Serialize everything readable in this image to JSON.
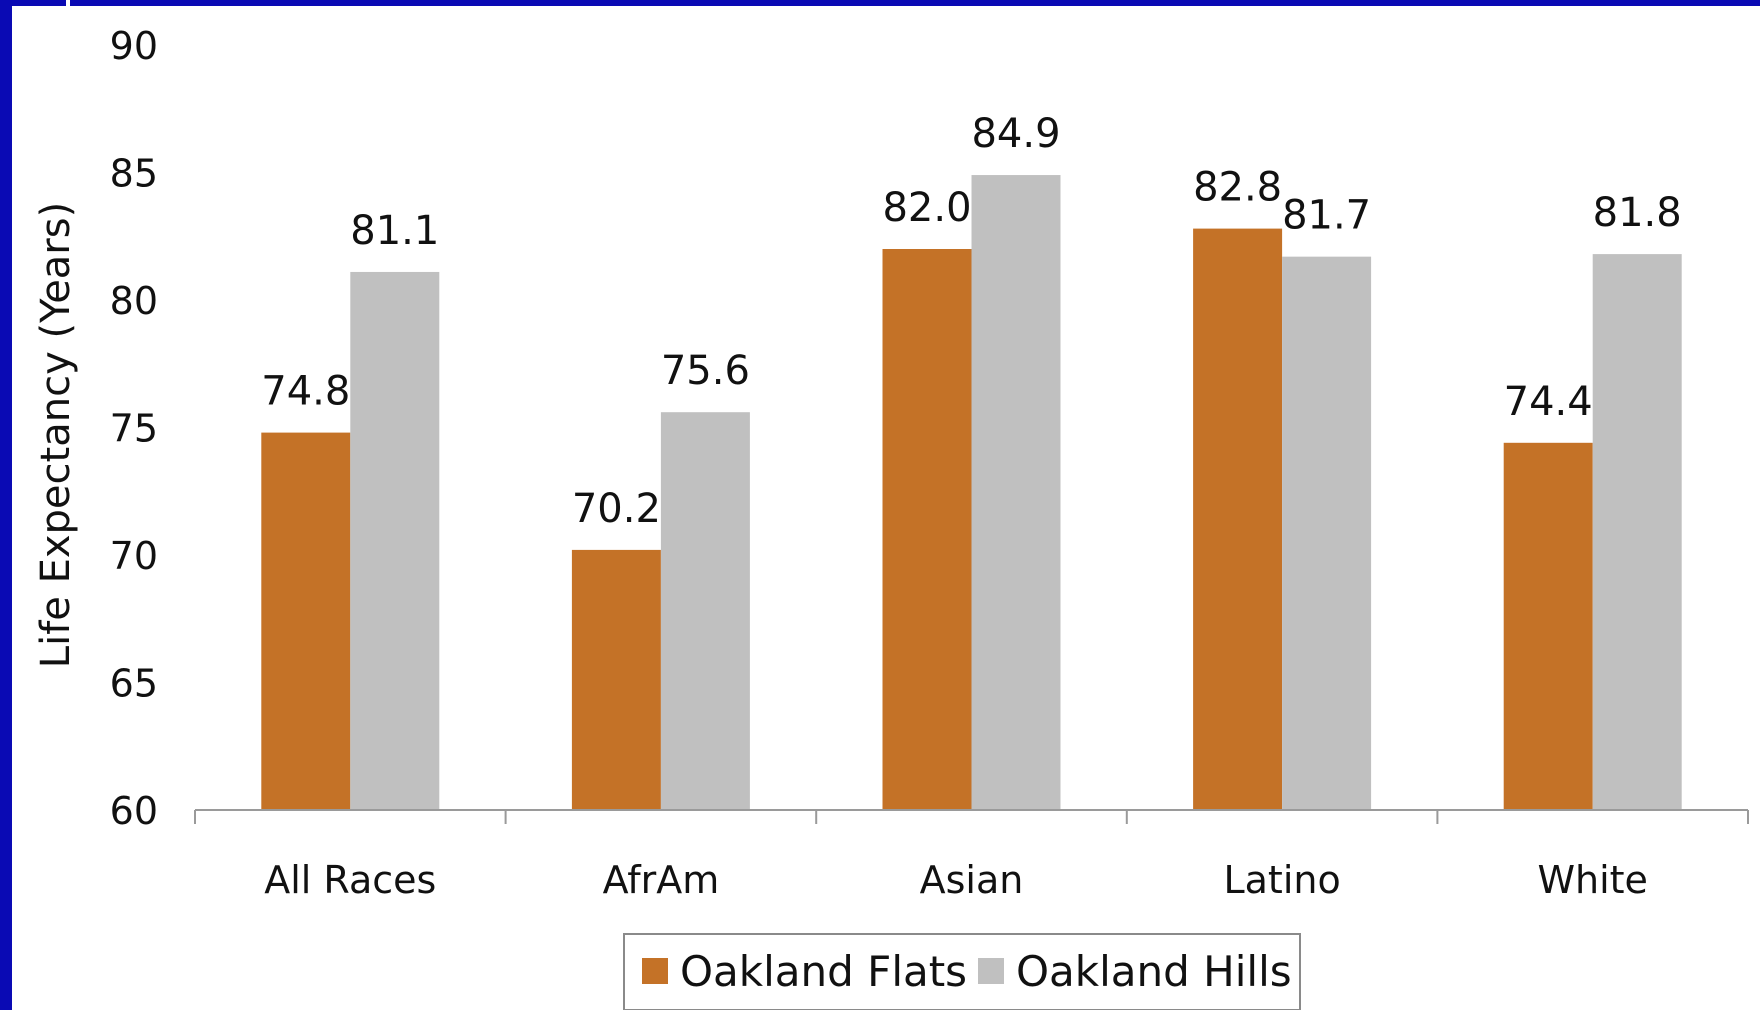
{
  "chart_data": {
    "type": "bar",
    "categories": [
      "All Races",
      "AfrAm",
      "Asian",
      "Latino",
      "White"
    ],
    "series": [
      {
        "name": "Oakland Flats",
        "values": [
          74.8,
          70.2,
          82.0,
          82.8,
          74.4
        ],
        "labels": [
          "74.8",
          "70.2",
          "82.0",
          "82.8",
          "74.4"
        ],
        "color": "#c47227"
      },
      {
        "name": "Oakland Hills",
        "values": [
          81.1,
          75.6,
          84.9,
          81.7,
          81.8
        ],
        "labels": [
          "81.1",
          "75.6",
          "84.9",
          "81.7",
          "81.8"
        ],
        "color": "#c0c0c0"
      }
    ],
    "ylabel": "Life Expectancy (Years)",
    "ylim": [
      60,
      90
    ],
    "yticks": [
      60,
      65,
      70,
      75,
      80,
      85,
      90
    ],
    "grid": false,
    "legend": "bottom",
    "background_color": "#0a0ab4"
  }
}
